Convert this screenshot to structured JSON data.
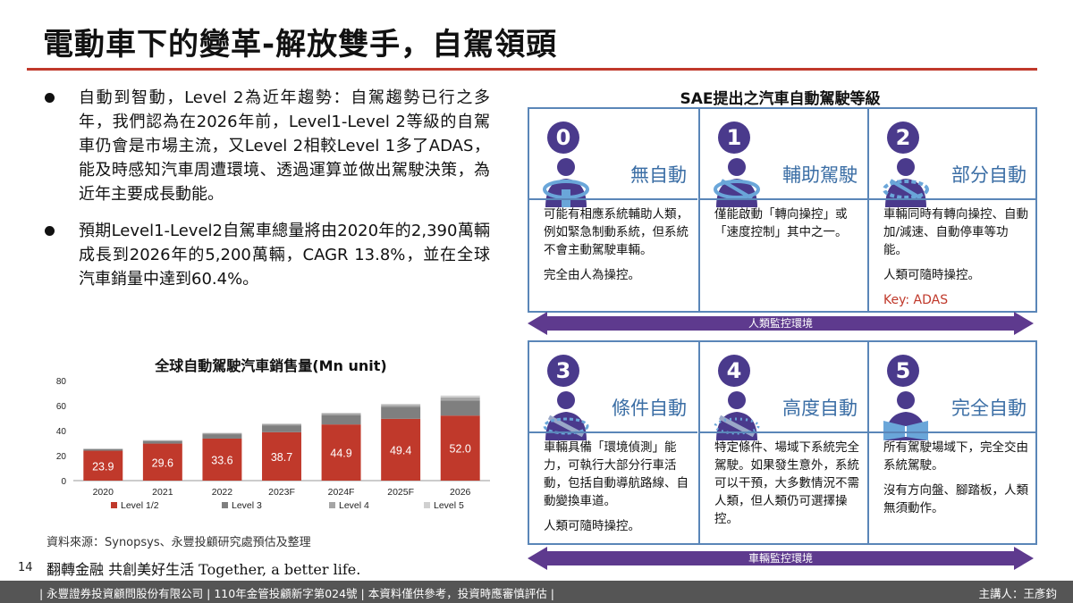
{
  "title": "電動車下的變革-解放雙手，自駕領頭",
  "bullets": [
    "自動到智動，Level 2為近年趨勢：自駕趨勢已行之多年，我們認為在2026年前，Level1-Level 2等級的自駕車仍會是市場主流，又Level 2相較Level 1多了ADAS，能及時感知汽車周遭環境、透過運算並做出駕駛決策，為近年主要成長動能。",
    "預期Level1-Level2自駕車總量將由2020年的2,390萬輛成長到2026年的5,200萬輛，CAGR 13.8%，並在全球汽車銷量中達到60.4%。"
  ],
  "chart_data": {
    "type": "bar",
    "stacked": true,
    "title": "全球自動駕駛汽車銷售量(Mn unit)",
    "categories": [
      "2020",
      "2021",
      "2022",
      "2023F",
      "2024F",
      "2025F",
      "2026"
    ],
    "ylim": [
      0,
      80
    ],
    "yticks": [
      0,
      20,
      40,
      60,
      80
    ],
    "series": [
      {
        "name": "Level 1/2",
        "color": "#c0392b",
        "values": [
          23.9,
          29.6,
          33.6,
          38.7,
          44.9,
          49.4,
          52.0
        ],
        "labels": [
          "23.9",
          "29.6",
          "33.6",
          "38.7",
          "44.9",
          "49.4",
          "52.0"
        ]
      },
      {
        "name": "Level 3",
        "color": "#7f7f7f",
        "values": [
          1.2,
          2.0,
          3.5,
          5.5,
          7.5,
          9.5,
          12.0
        ]
      },
      {
        "name": "Level 4",
        "color": "#a5a5a5",
        "values": [
          0.4,
          0.6,
          0.8,
          1.0,
          1.2,
          1.5,
          2.5
        ]
      },
      {
        "name": "Level 5",
        "color": "#d0d0d0",
        "values": [
          0.2,
          0.3,
          0.4,
          0.5,
          0.7,
          1.0,
          1.5
        ]
      }
    ],
    "legend_position": "bottom",
    "grid": false
  },
  "source": "資料來源：Synopsys、永豐投顧研究處預估及整理",
  "sae": {
    "title": "SAE提出之汽車自動駕駛等級",
    "monitor_human": "人類監控環境",
    "monitor_system": "車輛監控環境",
    "accent": "#4a3a8c",
    "levels": [
      {
        "num": "0",
        "name": "無自動",
        "desc": [
          "可能有相應系統輔助人類，例如緊急制動系統，但系統不會主動駕駛車輛。",
          "完全由人為操控。"
        ],
        "key": ""
      },
      {
        "num": "1",
        "name": "輔助駕駛",
        "desc": [
          "僅能啟動「轉向操控」或「速度控制」其中之一。"
        ],
        "key": ""
      },
      {
        "num": "2",
        "name": "部分自動",
        "desc": [
          "車輛同時有轉向操控、自動加/減速、自動停車等功能。",
          "人類可隨時操控。"
        ],
        "key": "Key: ADAS"
      },
      {
        "num": "3",
        "name": "條件自動",
        "desc": [
          "車輛具備「環境偵測」能力，可執行大部分行車活動，包括自動導航路線、自動變換車道。",
          "人類可隨時操控。"
        ],
        "key": ""
      },
      {
        "num": "4",
        "name": "高度自動",
        "desc": [
          "特定條件、場域下系統完全駕駛。如果發生意外，系統可以干預，大多數情況不需人類，但人類仍可選擇操控。"
        ],
        "key": ""
      },
      {
        "num": "5",
        "name": "完全自動",
        "desc": [
          "所有駕駛場域下，完全交由系統駕駛。",
          "沒有方向盤、腳踏板，人類無須動作。"
        ],
        "key": ""
      }
    ]
  },
  "footer": {
    "page": "14",
    "slogan": "翻轉金融 共創美好生活  Together, a better life.",
    "left": "| 永豐證券投資顧問股份有限公司 | 110年金管投顧新字第024號 | 本資料僅供參考，投資時應審慎評估 |",
    "right": "主講人：王彥鈞"
  }
}
